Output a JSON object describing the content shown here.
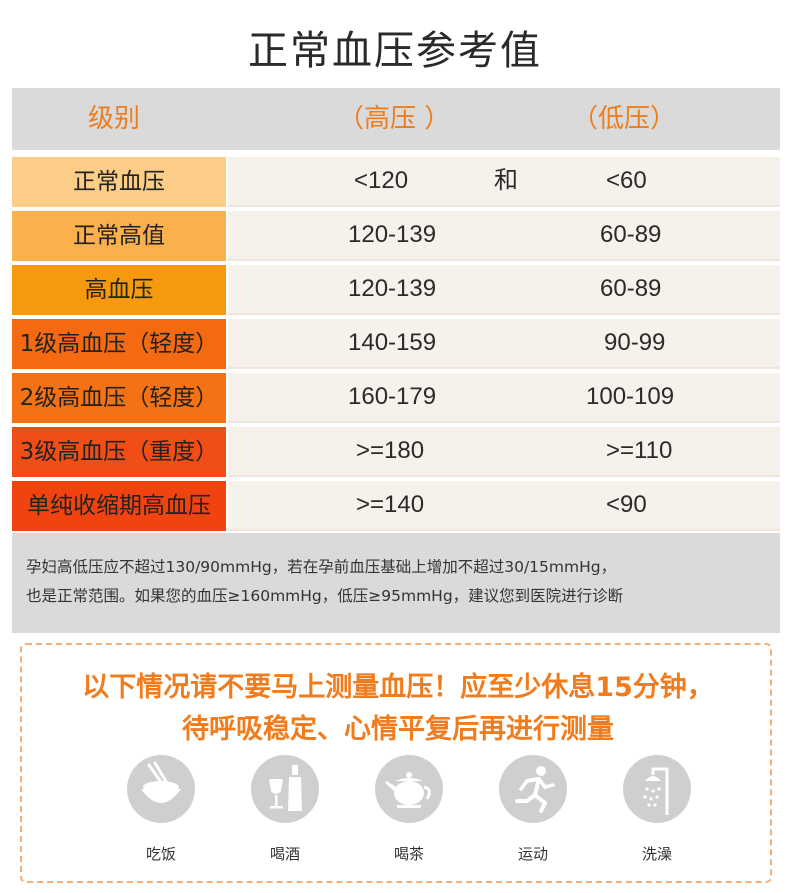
{
  "title": "正常血压参考值",
  "header": {
    "level": "级别",
    "high": "（高压 ）",
    "low": "（低压）"
  },
  "rows": [
    {
      "level": "正常血压",
      "high": "<120",
      "join": "和",
      "low": "<60",
      "color": "#fbcd86"
    },
    {
      "level": "正常高值",
      "high": "120-139",
      "join": "",
      "low": "60-89",
      "color": "#fab04d"
    },
    {
      "level": "高血压",
      "high": "120-139",
      "join": "",
      "low": "60-89",
      "color": "#f7990d"
    },
    {
      "level": "1级高血压（轻度）",
      "high": "140-159",
      "join": "",
      "low": "90-99",
      "color": "#f36a12"
    },
    {
      "level": "2级高血压（轻度）",
      "high": "160-179",
      "join": "",
      "low": "100-109",
      "color": "#f47114"
    },
    {
      "level": "3级高血压（重度）",
      "high": ">=180",
      "join": "",
      "low": ">=110",
      "color": "#f04e16"
    },
    {
      "level": "单纯收缩期高血压",
      "high": ">=140",
      "join": "",
      "low": "<90",
      "color": "#f0430f"
    }
  ],
  "note": {
    "line1": "孕妇高低压应不超过130/90mmHg，若在孕前血压基础上增加不超过30/15mmHg，",
    "line2": "也是正常范围。如果您的血压≥160mmHg，低压≥95mmHg，建议您到医院进行诊断"
  },
  "warning": {
    "line1": "以下情况请不要马上测量血压！应至少休息15分钟，",
    "line2": "待呼吸稳定、心情平复后再进行测量"
  },
  "activities": [
    {
      "label": "吃饭",
      "icon": "rice-bowl-icon"
    },
    {
      "label": "喝酒",
      "icon": "wine-icon"
    },
    {
      "label": "喝茶",
      "icon": "teapot-icon"
    },
    {
      "label": "运动",
      "icon": "running-icon"
    },
    {
      "label": "洗澡",
      "icon": "shower-icon"
    }
  ]
}
